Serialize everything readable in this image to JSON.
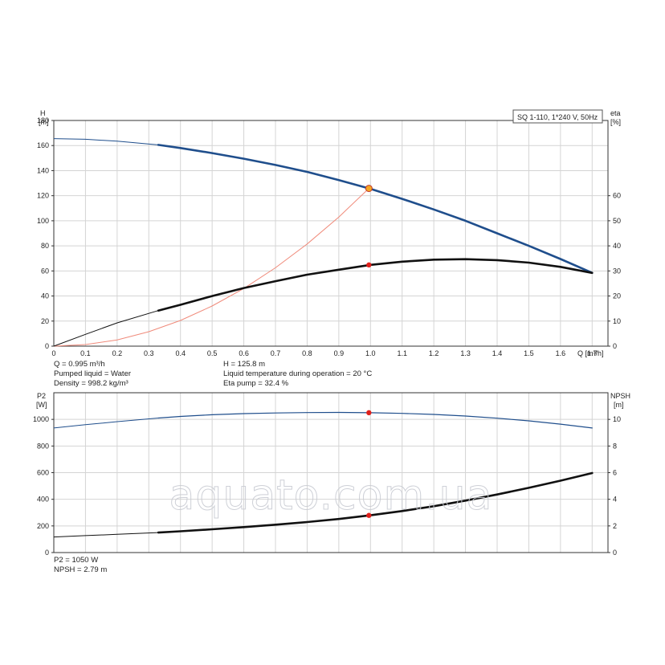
{
  "chart_data": [
    {
      "type": "line",
      "title": "SQ 1-110, 1*240 V, 50Hz",
      "xlabel": "Q [m³/h]",
      "ylabel": "H\n[m]",
      "y2label": "eta\n[%]",
      "xlim": [
        0,
        1.75
      ],
      "ylim": [
        0,
        180
      ],
      "y2lim": [
        0,
        90
      ],
      "xticks": [
        "0",
        "0.1",
        "0.2",
        "0.3",
        "0.4",
        "0.5",
        "0.6",
        "0.7",
        "0.8",
        "0.9",
        "1.0",
        "1.1",
        "1.2",
        "1.3",
        "1.4",
        "1.5",
        "1.6",
        "1.7"
      ],
      "yticks": [
        "0",
        "20",
        "40",
        "60",
        "80",
        "100",
        "120",
        "140",
        "160",
        "180"
      ],
      "y2ticks": [
        "0",
        "10",
        "20",
        "30",
        "40",
        "50",
        "60"
      ],
      "grid": true,
      "series": [
        {
          "color": "#1f4e8c",
          "axis": "left",
          "x": [
            0,
            0.1,
            0.2,
            0.33,
            0.4,
            0.5,
            0.6,
            0.7,
            0.8,
            0.9,
            1.0,
            1.1,
            1.2,
            1.3,
            1.4,
            1.5,
            1.6,
            1.7
          ],
          "values": [
            165.5,
            165,
            163.5,
            160.5,
            158,
            154,
            149.5,
            144.5,
            139,
            132.5,
            125.5,
            117.5,
            109,
            100,
            90,
            80,
            69.5,
            58.5
          ]
        },
        {
          "color": "#111111",
          "axis": "right",
          "x": [
            0,
            0.1,
            0.2,
            0.33,
            0.4,
            0.5,
            0.6,
            0.7,
            0.8,
            0.9,
            1.0,
            1.1,
            1.2,
            1.3,
            1.4,
            1.5,
            1.6,
            1.7
          ],
          "values": [
            0,
            4.7,
            9.3,
            14.2,
            16.5,
            20,
            23.2,
            25.9,
            28.5,
            30.5,
            32.4,
            33.7,
            34.5,
            34.7,
            34.3,
            33.3,
            31.6,
            29.2
          ]
        },
        {
          "color": "#f08a7a",
          "axis": "left",
          "x": [
            0,
            0.1,
            0.2,
            0.3,
            0.4,
            0.5,
            0.6,
            0.7,
            0.8,
            0.9,
            0.995
          ],
          "values": [
            0,
            1.3,
            5,
            11.5,
            20.5,
            32,
            46,
            62.5,
            81.5,
            103,
            125.8
          ]
        }
      ],
      "operating_point": {
        "x": 0.995,
        "H": 125.8,
        "eta": 32.4
      },
      "annotations": [
        "Q = 0.995 m³/h",
        "Pumped liquid = Water",
        "Density = 998.2 kg/m³",
        "H = 125.8 m",
        "Liquid temperature during operation = 20 °C",
        "Eta pump = 32.4 %"
      ]
    },
    {
      "type": "line",
      "ylabel": "P2\n[W]",
      "y2label": "NPSH\n[m]",
      "xlim": [
        0,
        1.75
      ],
      "ylim": [
        0,
        1200
      ],
      "y2lim": [
        0,
        12
      ],
      "yticks": [
        "0",
        "200",
        "400",
        "600",
        "800",
        "1000"
      ],
      "y2ticks": [
        "0",
        "2",
        "4",
        "6",
        "8",
        "10"
      ],
      "grid": true,
      "series": [
        {
          "color": "#1f4e8c",
          "axis": "left",
          "x": [
            0,
            0.1,
            0.2,
            0.33,
            0.4,
            0.5,
            0.6,
            0.7,
            0.8,
            0.9,
            1.0,
            1.1,
            1.2,
            1.3,
            1.4,
            1.5,
            1.6,
            1.7
          ],
          "values": [
            935,
            960,
            983,
            1010,
            1022,
            1035,
            1043,
            1048,
            1051,
            1052,
            1050,
            1045,
            1037,
            1025,
            1009,
            989,
            964,
            935
          ]
        },
        {
          "color": "#111111",
          "axis": "right",
          "x": [
            0,
            0.1,
            0.2,
            0.33,
            0.4,
            0.5,
            0.6,
            0.7,
            0.8,
            0.9,
            1.0,
            1.1,
            1.2,
            1.3,
            1.4,
            1.5,
            1.6,
            1.7
          ],
          "values": [
            1.17,
            1.27,
            1.37,
            1.5,
            1.6,
            1.75,
            1.91,
            2.09,
            2.29,
            2.52,
            2.8,
            3.12,
            3.48,
            3.9,
            4.36,
            4.86,
            5.4,
            5.97
          ]
        }
      ],
      "operating_point": {
        "x": 0.995,
        "P2": 1050,
        "NPSH": 2.79
      },
      "annotations": [
        "P2 = 1050 W",
        "NPSH = 2.79 m"
      ]
    }
  ],
  "watermark": "aquato.com.ua",
  "colors": {
    "head": "#1f4e8c",
    "eta": "#111111",
    "system": "#f08a7a",
    "point": "#e0201b",
    "point_highlight": "#f5a623"
  }
}
